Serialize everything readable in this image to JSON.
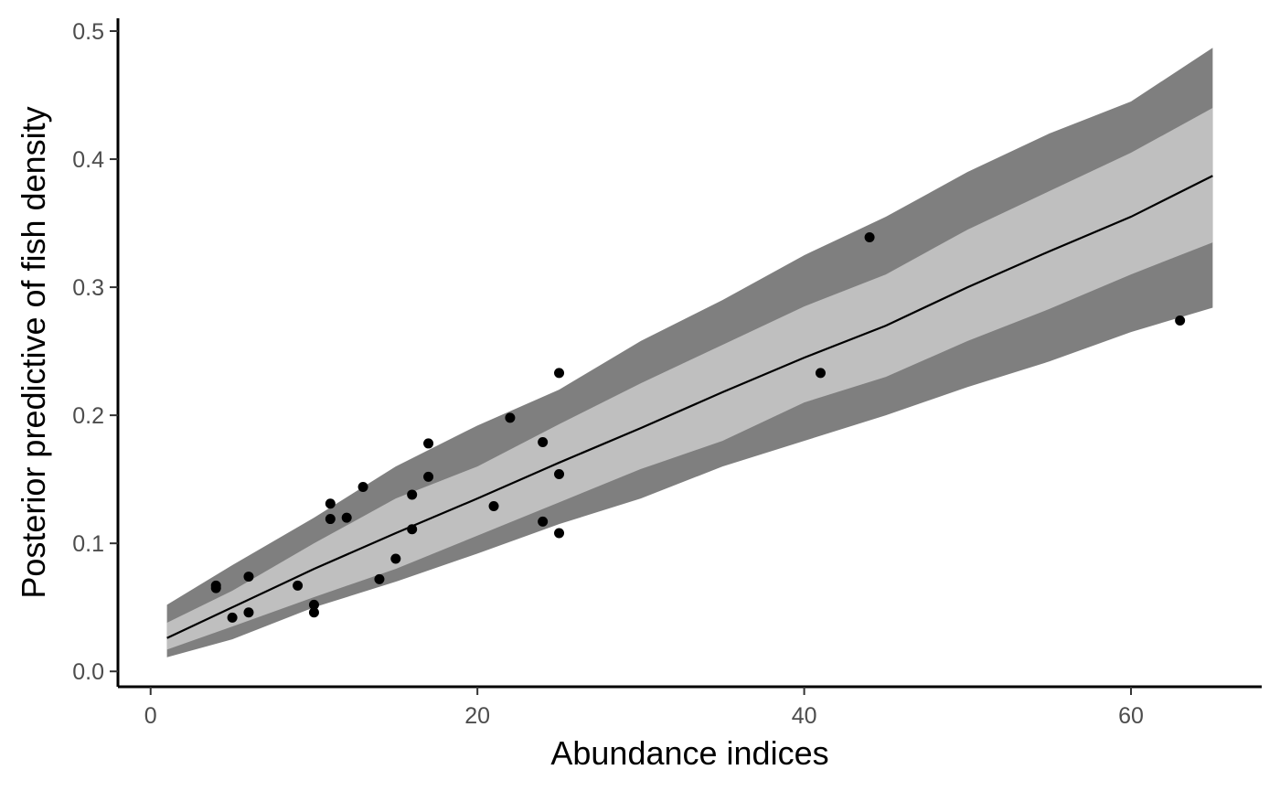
{
  "chart_data": {
    "type": "line",
    "xlabel": "Abundance indices",
    "ylabel": "Posterior predictive of fish density",
    "xlim": [
      -2,
      68
    ],
    "ylim": [
      -0.012,
      0.51
    ],
    "x_ticks": [
      0,
      20,
      40,
      60
    ],
    "y_ticks": [
      0.0,
      0.1,
      0.2,
      0.3,
      0.4,
      0.5
    ],
    "x_tick_labels": [
      "0",
      "20",
      "40",
      "60"
    ],
    "y_tick_labels": [
      "0.0",
      "0.1",
      "0.2",
      "0.3",
      "0.4",
      "0.5"
    ],
    "grid": false,
    "legend": "none",
    "colors": {
      "outer_band": "#7f7f7f",
      "inner_band": "#bfbfbf",
      "median_line": "#000000",
      "points": "#000000"
    },
    "band_x": [
      1,
      5,
      10,
      15,
      20,
      25,
      30,
      35,
      40,
      45,
      50,
      55,
      60,
      65
    ],
    "outer_band": {
      "lower": [
        0.011,
        0.025,
        0.05,
        0.07,
        0.092,
        0.115,
        0.135,
        0.16,
        0.18,
        0.2,
        0.222,
        0.242,
        0.265,
        0.284
      ],
      "upper": [
        0.052,
        0.083,
        0.12,
        0.16,
        0.192,
        0.22,
        0.258,
        0.29,
        0.325,
        0.355,
        0.39,
        0.42,
        0.445,
        0.487
      ]
    },
    "inner_band": {
      "lower": [
        0.017,
        0.035,
        0.058,
        0.08,
        0.106,
        0.132,
        0.158,
        0.18,
        0.21,
        0.23,
        0.258,
        0.283,
        0.31,
        0.335
      ],
      "upper": [
        0.038,
        0.063,
        0.1,
        0.135,
        0.16,
        0.193,
        0.225,
        0.255,
        0.285,
        0.31,
        0.345,
        0.375,
        0.405,
        0.44
      ]
    },
    "median": {
      "x": [
        1,
        5,
        10,
        15,
        20,
        25,
        30,
        35,
        40,
        45,
        50,
        55,
        60,
        65
      ],
      "y": [
        0.026,
        0.05,
        0.08,
        0.108,
        0.135,
        0.163,
        0.19,
        0.218,
        0.245,
        0.27,
        0.3,
        0.328,
        0.355,
        0.387
      ]
    },
    "points": [
      {
        "x": 4,
        "y": 0.065
      },
      {
        "x": 4,
        "y": 0.067
      },
      {
        "x": 5,
        "y": 0.042
      },
      {
        "x": 6,
        "y": 0.074
      },
      {
        "x": 6,
        "y": 0.046
      },
      {
        "x": 9,
        "y": 0.067
      },
      {
        "x": 10,
        "y": 0.052
      },
      {
        "x": 10,
        "y": 0.046
      },
      {
        "x": 11,
        "y": 0.131
      },
      {
        "x": 11,
        "y": 0.119
      },
      {
        "x": 12,
        "y": 0.12
      },
      {
        "x": 13,
        "y": 0.144
      },
      {
        "x": 14,
        "y": 0.072
      },
      {
        "x": 15,
        "y": 0.088
      },
      {
        "x": 16,
        "y": 0.138
      },
      {
        "x": 16,
        "y": 0.111
      },
      {
        "x": 17,
        "y": 0.178
      },
      {
        "x": 17,
        "y": 0.152
      },
      {
        "x": 21,
        "y": 0.129
      },
      {
        "x": 22,
        "y": 0.198
      },
      {
        "x": 24,
        "y": 0.179
      },
      {
        "x": 24,
        "y": 0.117
      },
      {
        "x": 25,
        "y": 0.233
      },
      {
        "x": 25,
        "y": 0.154
      },
      {
        "x": 25,
        "y": 0.108
      },
      {
        "x": 41,
        "y": 0.233
      },
      {
        "x": 44,
        "y": 0.339
      },
      {
        "x": 63,
        "y": 0.274
      }
    ]
  }
}
